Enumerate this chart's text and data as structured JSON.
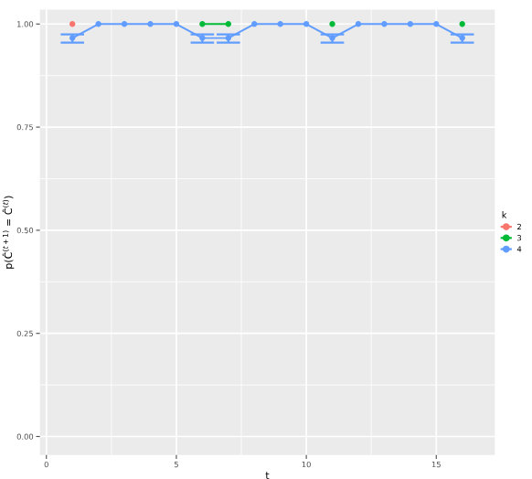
{
  "chart_data": {
    "type": "line",
    "xlabel": "t",
    "ylabel": "p(Ĉ$^{(t+1)}$ = Ĉ$^{(t)}$)",
    "legend_title": "k",
    "x": [
      1,
      2,
      3,
      4,
      5,
      6,
      7,
      8,
      9,
      10,
      11,
      12,
      13,
      14,
      15,
      16
    ],
    "series": [
      {
        "name": "2",
        "color": "#f8766d",
        "values": [
          1,
          null,
          null,
          null,
          null,
          null,
          null,
          null,
          null,
          null,
          null,
          null,
          null,
          null,
          null,
          null
        ]
      },
      {
        "name": "3",
        "color": "#00ba38",
        "values": [
          null,
          null,
          null,
          null,
          null,
          1,
          1,
          null,
          null,
          null,
          1,
          null,
          null,
          null,
          null,
          1
        ]
      },
      {
        "name": "4",
        "color": "#619cff",
        "values": [
          0.966,
          1,
          1,
          1,
          1,
          0.966,
          0.966,
          1,
          1,
          1,
          0.966,
          1,
          1,
          1,
          1,
          0.966
        ],
        "errors": [
          [
            0.955,
            0.975
          ],
          null,
          null,
          null,
          null,
          [
            0.955,
            0.975
          ],
          [
            0.955,
            0.975
          ],
          null,
          null,
          null,
          [
            0.955,
            0.975
          ],
          null,
          null,
          null,
          null,
          [
            0.955,
            0.975
          ]
        ]
      }
    ],
    "xlim": [
      -0.25,
      17.25
    ],
    "xticks": [
      0,
      5,
      10,
      15
    ],
    "ylim": [
      -0.045,
      1.035
    ],
    "yticks": [
      {
        "value": 0,
        "label": "0.00"
      },
      {
        "value": 0.25,
        "label": "0.25"
      },
      {
        "value": 0.5,
        "label": "0.50"
      },
      {
        "value": 0.75,
        "label": "0.75"
      },
      {
        "value": 1,
        "label": "1.00"
      }
    ],
    "grid": true,
    "legend": "right",
    "marker": "circle"
  }
}
